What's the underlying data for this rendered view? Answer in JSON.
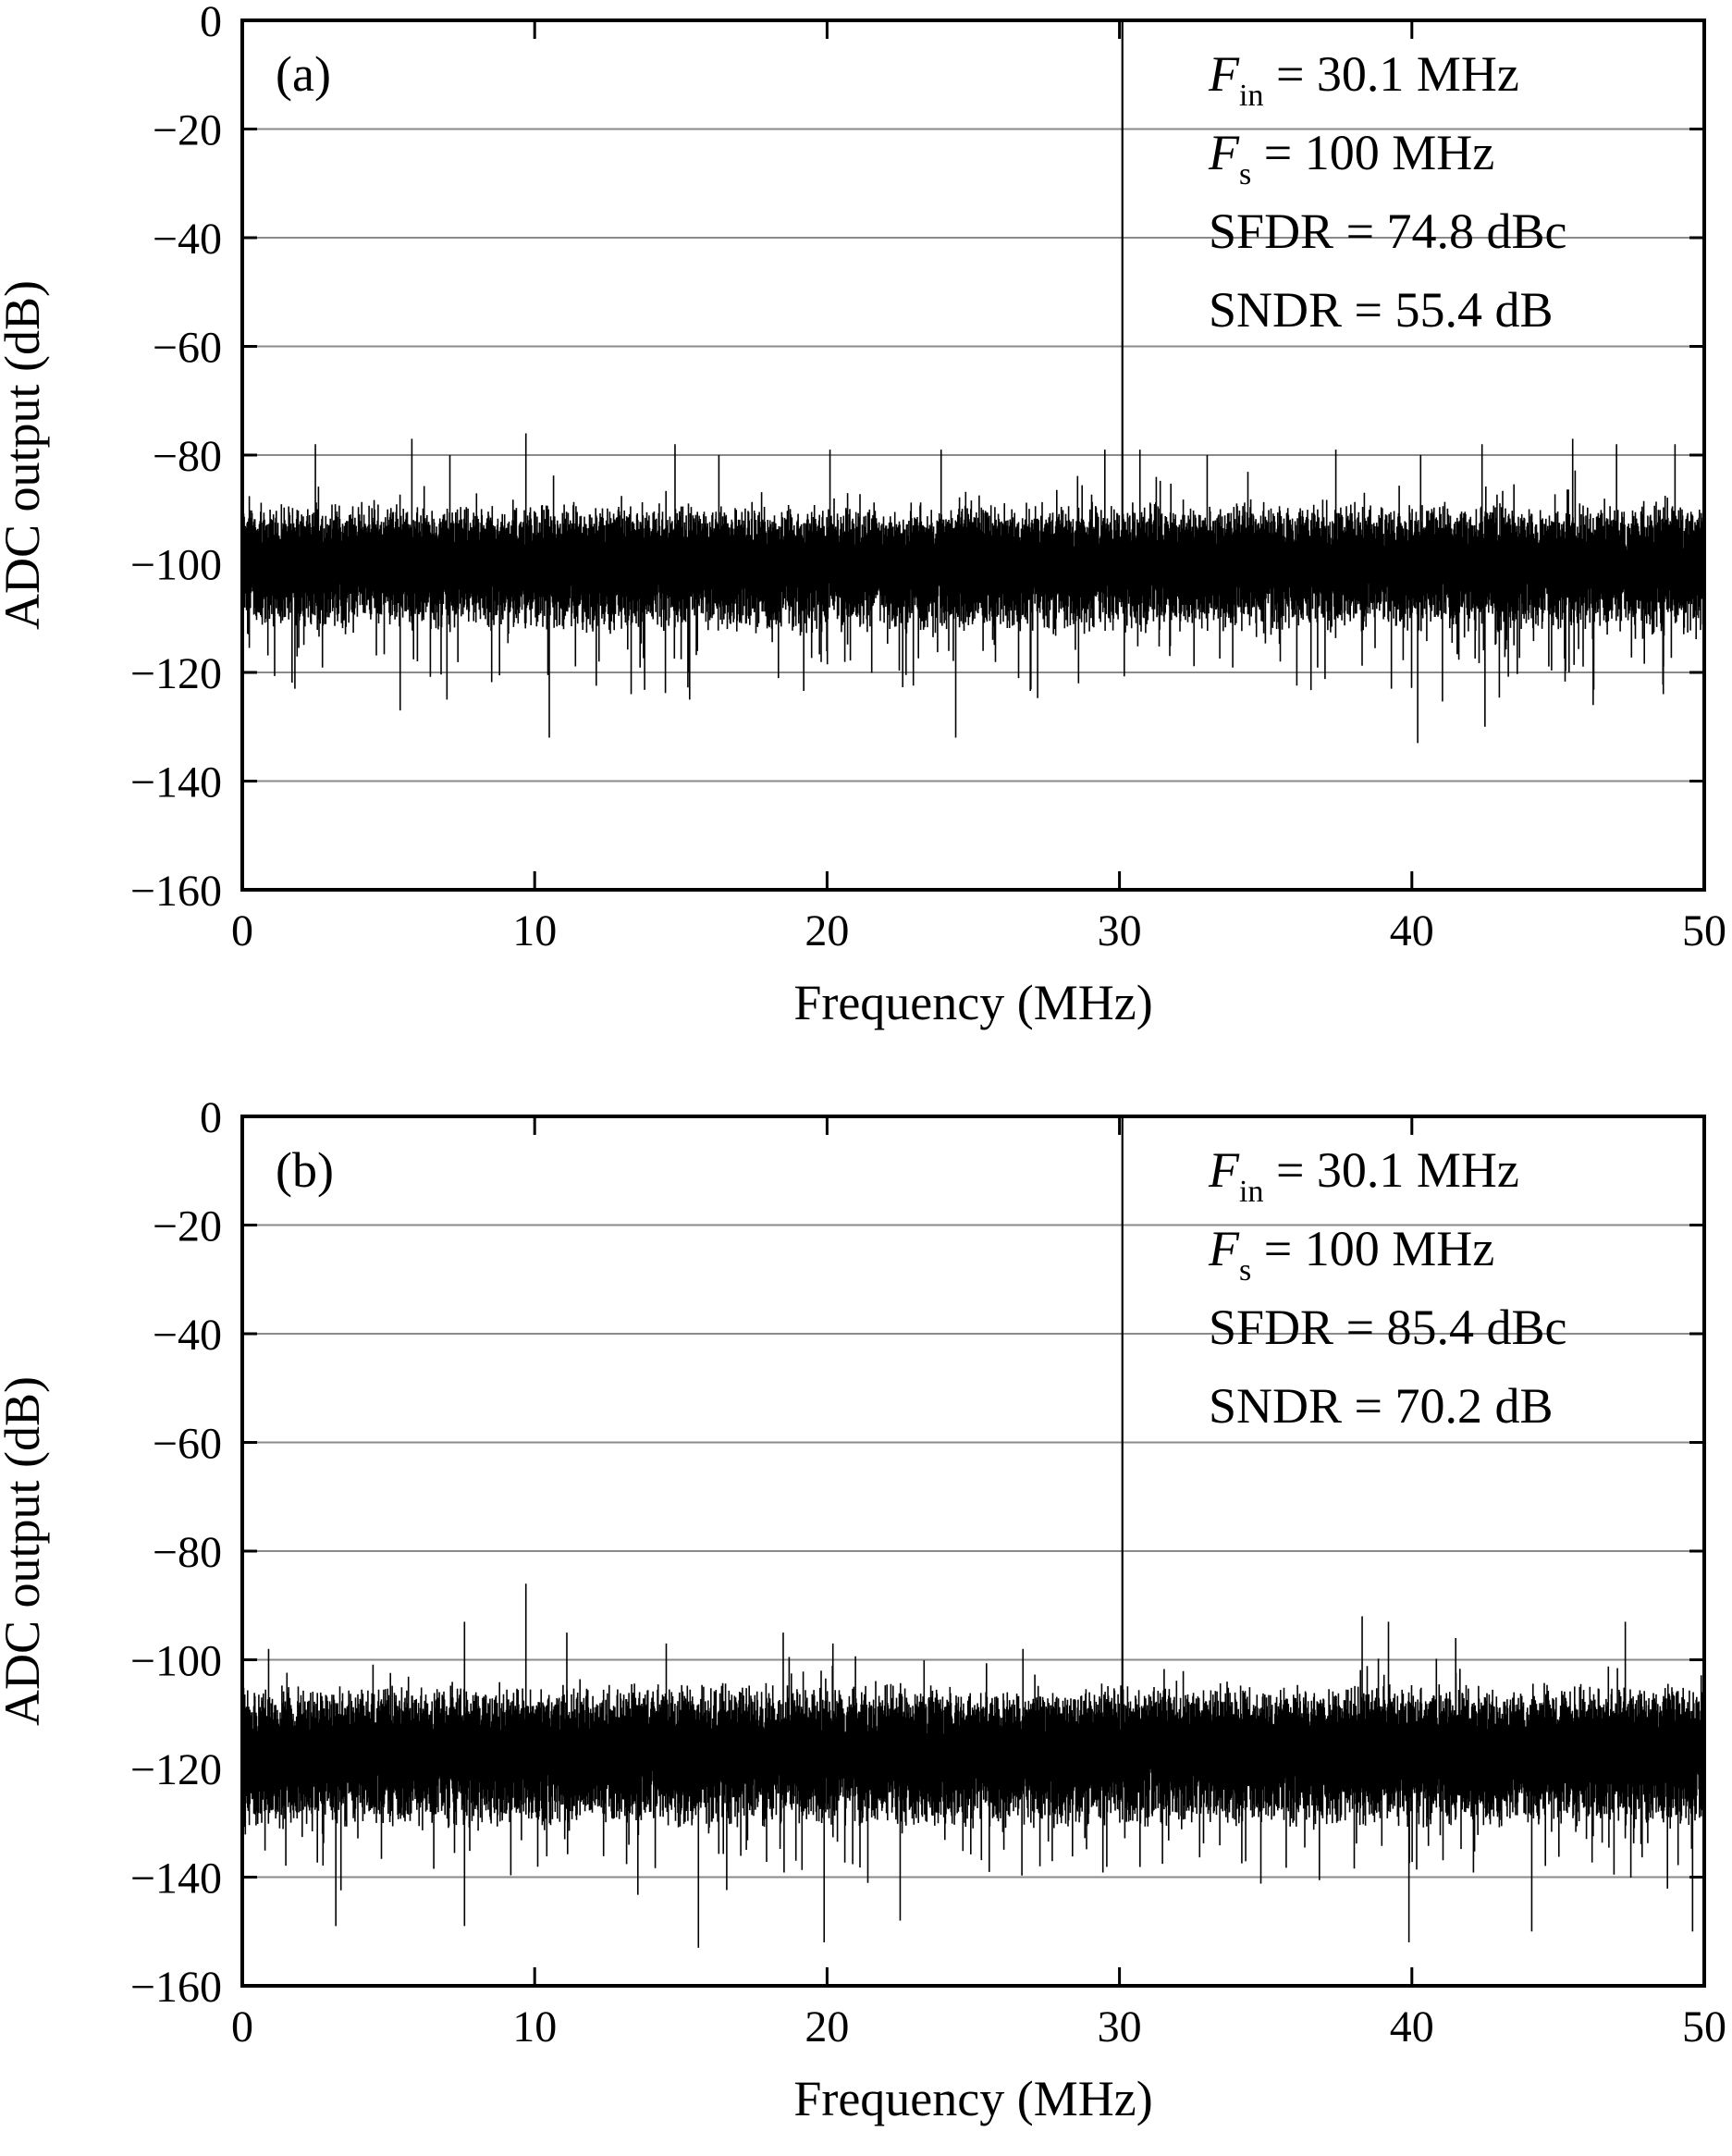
{
  "figure": {
    "panels": [
      {
        "id": "a",
        "panel_label": "(a)",
        "annotations": [
          {
            "var": "F",
            "sub": "in",
            "rest": " = 30.1 MHz"
          },
          {
            "var": "F",
            "sub": "s",
            "rest": " = 100 MHz"
          },
          {
            "var": "",
            "sub": "",
            "rest": "SFDR = 74.8 dBc"
          },
          {
            "var": "",
            "sub": "",
            "rest": "SNDR = 55.4 dB"
          }
        ]
      },
      {
        "id": "b",
        "panel_label": "(b)",
        "annotations": [
          {
            "var": "F",
            "sub": "in",
            "rest": " = 30.1 MHz"
          },
          {
            "var": "F",
            "sub": "s",
            "rest": " = 100 MHz"
          },
          {
            "var": "",
            "sub": "",
            "rest": "SFDR = 85.4 dBc"
          },
          {
            "var": "",
            "sub": "",
            "rest": "SNDR = 70.2 dB"
          }
        ]
      }
    ]
  },
  "chart_data": [
    {
      "type": "line",
      "title": "",
      "panel": "(a)",
      "xlabel": "Frequency (MHz)",
      "ylabel": "ADC output (dB)",
      "xlim": [
        0,
        50
      ],
      "ylim": [
        -160,
        0
      ],
      "x_ticks": [
        "0",
        "10",
        "20",
        "30",
        "40",
        "50"
      ],
      "y_ticks": [
        "0",
        "−20",
        "−40",
        "−60",
        "−80",
        "−100",
        "−120",
        "−140",
        "−160"
      ],
      "grid": "horizontal",
      "fundamental": {
        "x": 30.1,
        "y": 0
      },
      "noise_floor_db": -100,
      "noise_band_db": [
        -108,
        -92
      ],
      "spurs": [
        {
          "x": 2.5,
          "y": -78
        },
        {
          "x": 5.8,
          "y": -77
        },
        {
          "x": 7.1,
          "y": -80
        },
        {
          "x": 9.7,
          "y": -76
        },
        {
          "x": 14.8,
          "y": -78
        },
        {
          "x": 16.3,
          "y": -80
        },
        {
          "x": 20.1,
          "y": -79
        },
        {
          "x": 23.9,
          "y": -79
        },
        {
          "x": 29.5,
          "y": -79
        },
        {
          "x": 30.7,
          "y": -79
        },
        {
          "x": 33.0,
          "y": -80
        },
        {
          "x": 37.4,
          "y": -79
        },
        {
          "x": 40.3,
          "y": -80
        },
        {
          "x": 42.4,
          "y": -78
        },
        {
          "x": 45.5,
          "y": -77
        },
        {
          "x": 47.0,
          "y": -78
        },
        {
          "x": 49.0,
          "y": -78
        }
      ],
      "dips": [
        {
          "x": 1.8,
          "y": -123
        },
        {
          "x": 5.4,
          "y": -127
        },
        {
          "x": 7.0,
          "y": -125
        },
        {
          "x": 10.5,
          "y": -132
        },
        {
          "x": 12.2,
          "y": -118
        },
        {
          "x": 13.3,
          "y": -124
        },
        {
          "x": 15.3,
          "y": -125
        },
        {
          "x": 24.4,
          "y": -132
        },
        {
          "x": 28.6,
          "y": -122
        },
        {
          "x": 35.5,
          "y": -118
        },
        {
          "x": 39.3,
          "y": -123
        },
        {
          "x": 40.2,
          "y": -133
        },
        {
          "x": 42.5,
          "y": -130
        },
        {
          "x": 46.2,
          "y": -126
        },
        {
          "x": 48.6,
          "y": -124
        }
      ]
    },
    {
      "type": "line",
      "title": "",
      "panel": "(b)",
      "xlabel": "Frequency (MHz)",
      "ylabel": "ADC output (dB)",
      "xlim": [
        0,
        50
      ],
      "ylim": [
        -160,
        0
      ],
      "x_ticks": [
        "0",
        "10",
        "20",
        "30",
        "40",
        "50"
      ],
      "y_ticks": [
        "0",
        "−20",
        "−40",
        "−60",
        "−80",
        "−100",
        "−120",
        "−140",
        "−160"
      ],
      "grid": "horizontal",
      "fundamental": {
        "x": 30.1,
        "y": 0
      },
      "noise_floor_db": -117,
      "noise_band_db": [
        -126,
        -108
      ],
      "spurs": [
        {
          "x": 0.9,
          "y": -98
        },
        {
          "x": 7.6,
          "y": -93
        },
        {
          "x": 9.7,
          "y": -86
        },
        {
          "x": 11.1,
          "y": -95
        },
        {
          "x": 14.5,
          "y": -97
        },
        {
          "x": 18.5,
          "y": -95
        },
        {
          "x": 20.2,
          "y": -97
        },
        {
          "x": 26.7,
          "y": -98
        },
        {
          "x": 38.3,
          "y": -92
        },
        {
          "x": 39.2,
          "y": -93
        },
        {
          "x": 41.5,
          "y": -96
        },
        {
          "x": 47.3,
          "y": -93
        }
      ],
      "dips": [
        {
          "x": 3.2,
          "y": -149
        },
        {
          "x": 7.6,
          "y": -149
        },
        {
          "x": 15.6,
          "y": -153
        },
        {
          "x": 19.9,
          "y": -152
        },
        {
          "x": 22.5,
          "y": -148
        },
        {
          "x": 39.9,
          "y": -152
        },
        {
          "x": 44.1,
          "y": -150
        },
        {
          "x": 49.6,
          "y": -150
        }
      ]
    }
  ]
}
